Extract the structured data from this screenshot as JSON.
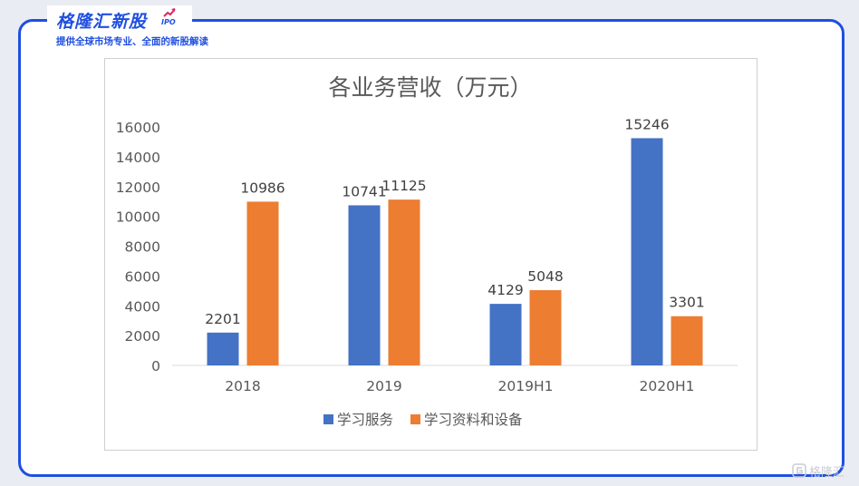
{
  "header": {
    "brand": "格隆汇新股",
    "brand_suffix": "IPO",
    "slogan": "提供全球市场专业、全面的新股解读"
  },
  "watermark": {
    "text": "格隆汇"
  },
  "colors": {
    "brand": "#1f4fe0",
    "series1": "#4472c4",
    "series2": "#ed7d31"
  },
  "chart_data": {
    "type": "bar",
    "title": "各业务营收（万元）",
    "categories": [
      "2018",
      "2019",
      "2019H1",
      "2020H1"
    ],
    "series": [
      {
        "name": "学习服务",
        "values": [
          2201,
          10741,
          4129,
          15246
        ]
      },
      {
        "name": "学习资料和设备",
        "values": [
          10986,
          11125,
          5048,
          3301
        ]
      }
    ],
    "y_ticks": [
      0,
      2000,
      4000,
      6000,
      8000,
      10000,
      12000,
      14000,
      16000
    ],
    "ylim": [
      0,
      16000
    ],
    "grid": false,
    "legend_position": "bottom"
  }
}
